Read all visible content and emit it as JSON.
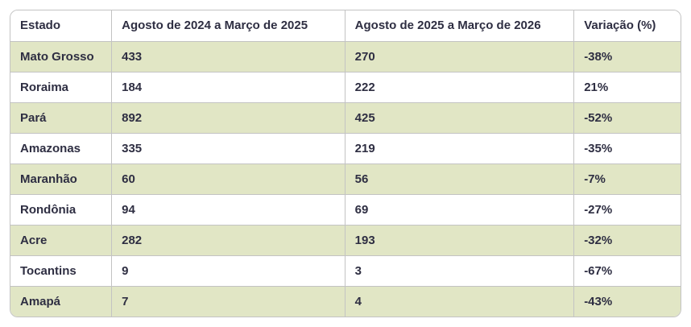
{
  "colors": {
    "row_stripe": "#e1e6c5",
    "border": "#c3c3c3",
    "text": "#2e2e42",
    "bg": "#ffffff"
  },
  "chart_data": {
    "type": "table",
    "columns": [
      "Estado",
      "Agosto de 2024 a Março de 2025",
      "Agosto de 2025 a Março de 2026",
      "Variação (%)"
    ],
    "rows": [
      [
        "Mato Grosso",
        "433",
        "270",
        "-38%"
      ],
      [
        "Roraima",
        "184",
        "222",
        "21%"
      ],
      [
        "Pará",
        "892",
        "425",
        "-52%"
      ],
      [
        "Amazonas",
        "335",
        "219",
        "-35%"
      ],
      [
        "Maranhão",
        "60",
        "56",
        "-7%"
      ],
      [
        "Rondônia",
        "94",
        "69",
        "-27%"
      ],
      [
        "Acre",
        "282",
        "193",
        "-32%"
      ],
      [
        "Tocantins",
        "9",
        "3",
        "-67%"
      ],
      [
        "Amapá",
        "7",
        "4",
        "-43%"
      ]
    ],
    "layout_hints": {
      "striped_rows": "odd data rows shaded pale olive-green",
      "header_background": "white",
      "outer_corners": "rounded"
    }
  }
}
